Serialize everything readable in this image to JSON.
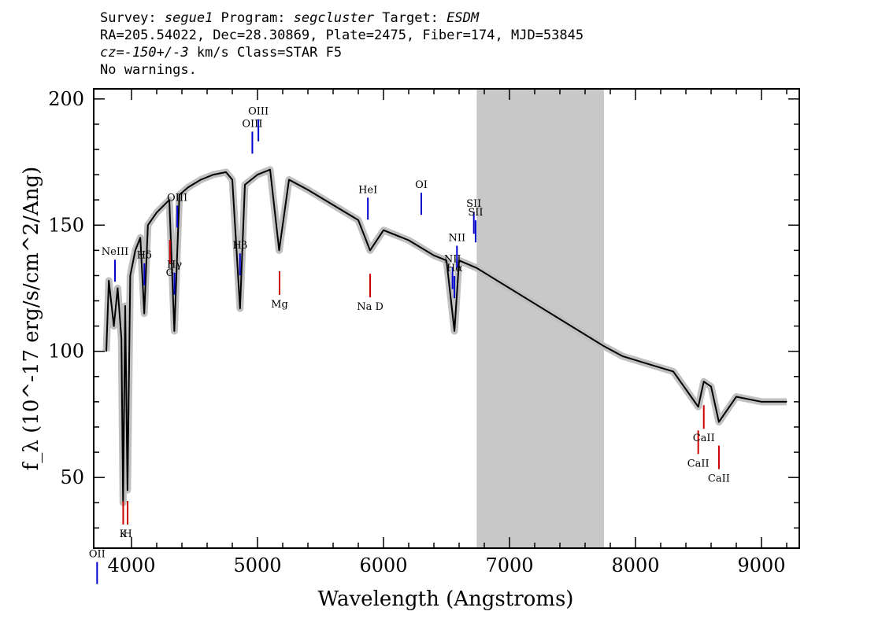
{
  "header": {
    "line1": [
      "Survey: ",
      "segue1",
      " Program: ",
      "segcluster",
      " Target: ",
      "ESDM"
    ],
    "line2": "RA=205.54022, Dec=28.30869, Plate=2475, Fiber=174, MJD=53845",
    "line3": [
      "cz=-150+/-3",
      " km/s Class=STAR F5"
    ],
    "line4": "No warnings."
  },
  "colors": {
    "flux": "#000000",
    "error_band": "#c0c0c0",
    "masked_region": "#c8c8c8",
    "emission": "#0000cc",
    "absorption": "#cc0000"
  },
  "chart_data": {
    "type": "line",
    "xlabel": "Wavelength (Angstroms)",
    "ylabel": "f_λ (10^-17 erg/s/cm^2/Ang)",
    "xlim": [
      3700,
      9300
    ],
    "ylim": [
      22,
      204
    ],
    "xticks": [
      4000,
      5000,
      6000,
      7000,
      8000,
      9000
    ],
    "yticks": [
      50,
      100,
      150,
      200
    ],
    "masked_region": [
      6740,
      7750
    ],
    "series": [
      {
        "x": [
          3800,
          3820,
          3860,
          3890,
          3920,
          3933,
          3950,
          3968,
          3990,
          4030,
          4070,
          4101,
          4130,
          4200,
          4300,
          4340,
          4380,
          4450,
          4550,
          4650,
          4750,
          4800,
          4861,
          4900,
          5000,
          5100,
          5172,
          5250,
          5400,
          5600,
          5800,
          5893,
          6000,
          6200,
          6400,
          6500,
          6563,
          6600,
          6740,
          7750,
          7900,
          8100,
          8300,
          8498,
          8542,
          8600,
          8662,
          8800,
          9000,
          9200
        ],
        "y": [
          100,
          128,
          110,
          125,
          105,
          40,
          118,
          45,
          130,
          140,
          145,
          115,
          150,
          155,
          160,
          108,
          162,
          165,
          168,
          170,
          171,
          168,
          117,
          166,
          170,
          172,
          140,
          168,
          164,
          158,
          152,
          140,
          148,
          144,
          138,
          136,
          108,
          136,
          133,
          102,
          98,
          95,
          92,
          78,
          88,
          86,
          72,
          82,
          80,
          80
        ]
      }
    ],
    "emission_lines": [
      {
        "label": "OII",
        "x": 3727
      },
      {
        "label": "NeIII",
        "x": 3869
      },
      {
        "label": "Hδ",
        "x": 4102
      },
      {
        "label": "Hγ",
        "x": 4341
      },
      {
        "label": "OIII",
        "x": 4363
      },
      {
        "label": "Hβ",
        "x": 4861
      },
      {
        "label": "OIII",
        "x": 4959
      },
      {
        "label": "OIII",
        "x": 5007
      },
      {
        "label": "HeI",
        "x": 5876
      },
      {
        "label": "OI",
        "x": 6300
      },
      {
        "label": "NII",
        "x": 6548
      },
      {
        "label": "Hα",
        "x": 6563
      },
      {
        "label": "NII",
        "x": 6583
      },
      {
        "label": "SII",
        "x": 6717
      },
      {
        "label": "SII",
        "x": 6731
      }
    ],
    "absorption_lines": [
      {
        "label": "K",
        "x": 3934
      },
      {
        "label": "H",
        "x": 3969
      },
      {
        "label": "G",
        "x": 4305
      },
      {
        "label": "Mg",
        "x": 5175
      },
      {
        "label": "Na D",
        "x": 5894
      },
      {
        "label": "CaII",
        "x": 8498
      },
      {
        "label": "CaII",
        "x": 8542
      },
      {
        "label": "CaII",
        "x": 8662
      }
    ]
  }
}
